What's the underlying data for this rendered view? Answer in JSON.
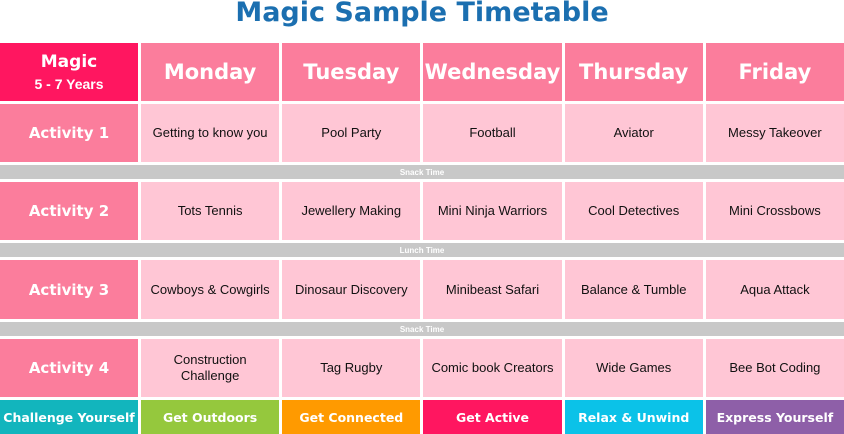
{
  "title": "Magic Sample Timetable",
  "corner": {
    "name": "Magic",
    "ages": "5 - 7 Years"
  },
  "days": [
    "Monday",
    "Tuesday",
    "Wednesday",
    "Thursday",
    "Friday"
  ],
  "rows": [
    {
      "label": "Activity 1",
      "cells": [
        "Getting to know you",
        "Pool Party",
        "Football",
        "Aviator",
        "Messy Takeover"
      ]
    },
    {
      "break": "Snack Time"
    },
    {
      "label": "Activity 2",
      "cells": [
        "Tots Tennis",
        "Jewellery Making",
        "Mini Ninja Warriors",
        "Cool Detectives",
        "Mini Crossbows"
      ]
    },
    {
      "break": "Lunch Time"
    },
    {
      "label": "Activity 3",
      "cells": [
        "Cowboys & Cowgirls",
        "Dinosaur Discovery",
        "Minibeast Safari",
        "Balance & Tumble",
        "Aqua Attack"
      ]
    },
    {
      "break": "Snack Time"
    },
    {
      "label": "Activity 4",
      "cells": [
        "Construction Challenge",
        "Tag Rugby",
        "Comic book Creators",
        "Wide Games",
        "Bee Bot Coding"
      ]
    }
  ],
  "footer": [
    {
      "label": "Challenge Yourself",
      "color": "#12b5bd"
    },
    {
      "label": "Get Outdoors",
      "color": "#95c83d"
    },
    {
      "label": "Get Connected",
      "color": "#ff9a00"
    },
    {
      "label": "Get Active",
      "color": "#ff1660"
    },
    {
      "label": "Relax & Unwind",
      "color": "#0bc2e8"
    },
    {
      "label": "Express Yourself",
      "color": "#8e5fa8"
    }
  ]
}
